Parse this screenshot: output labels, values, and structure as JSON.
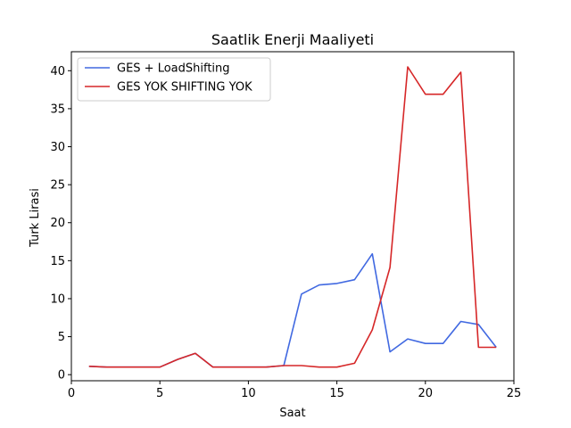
{
  "chart_data": {
    "type": "line",
    "title": "Saatlik Enerji Maaliyeti",
    "xlabel": "Saat",
    "ylabel": "Turk Lirasi",
    "xlim": [
      0,
      25
    ],
    "ylim": [
      -0.8,
      42.5
    ],
    "xticks": [
      0,
      5,
      10,
      15,
      20,
      25
    ],
    "yticks": [
      0,
      5,
      10,
      15,
      20,
      25,
      30,
      35,
      40
    ],
    "grid": false,
    "legend_position": "top-left",
    "x": [
      1,
      2,
      3,
      4,
      5,
      6,
      7,
      8,
      9,
      10,
      11,
      12,
      13,
      14,
      15,
      16,
      17,
      18,
      19,
      20,
      21,
      22,
      23,
      24
    ],
    "series": [
      {
        "name": "GES + LoadShifting",
        "color": "#4169e1",
        "values": [
          1.1,
          1.0,
          1.0,
          1.0,
          1.0,
          2.0,
          2.8,
          1.0,
          1.0,
          1.0,
          1.0,
          1.2,
          10.6,
          11.8,
          12.0,
          12.5,
          15.9,
          3.0,
          4.7,
          4.1,
          4.1,
          7.0,
          6.6,
          3.6
        ]
      },
      {
        "name": "GES YOK SHIFTING YOK",
        "color": "#d62728",
        "values": [
          1.1,
          1.0,
          1.0,
          1.0,
          1.0,
          2.0,
          2.8,
          1.0,
          1.0,
          1.0,
          1.0,
          1.2,
          1.2,
          1.0,
          1.0,
          1.5,
          5.9,
          14.1,
          40.5,
          36.9,
          36.9,
          39.8,
          3.6,
          3.6
        ]
      }
    ]
  }
}
